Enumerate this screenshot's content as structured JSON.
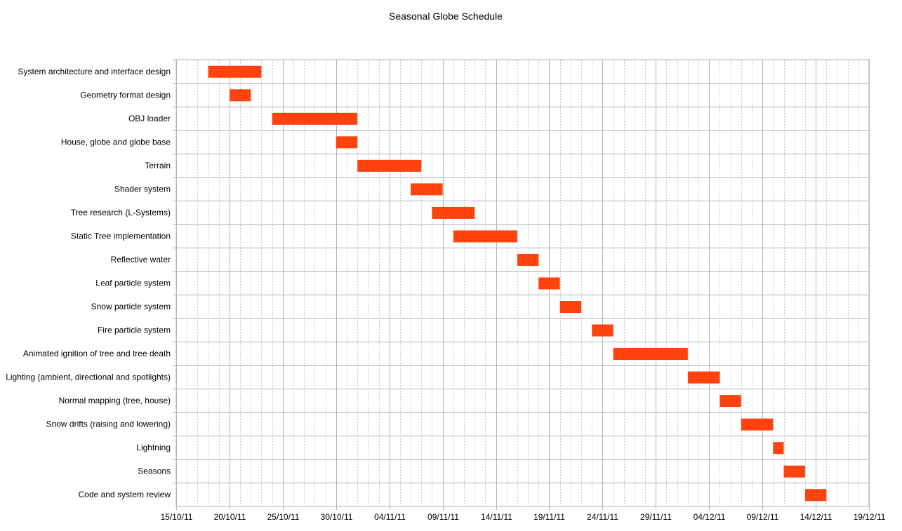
{
  "chart_data": {
    "type": "bar",
    "orientation": "horizontal",
    "title": "Seasonal Globe Schedule",
    "xlabel": "",
    "ylabel": "",
    "xlim": [
      "2011-10-15",
      "2011-12-19"
    ],
    "x_ticks": [
      "15/10/11",
      "20/10/11",
      "25/10/11",
      "30/10/11",
      "04/11/11",
      "09/11/11",
      "14/11/11",
      "19/11/11",
      "24/11/11",
      "29/11/11",
      "04/12/11",
      "09/12/11",
      "14/12/11",
      "19/12/11"
    ],
    "x_tick_dates": [
      "2011-10-15",
      "2011-10-20",
      "2011-10-25",
      "2011-10-30",
      "2011-11-04",
      "2011-11-09",
      "2011-11-14",
      "2011-11-19",
      "2011-11-24",
      "2011-11-29",
      "2011-12-04",
      "2011-12-09",
      "2011-12-14",
      "2011-12-19"
    ],
    "grid": true,
    "bar_color": "#ff420e",
    "tasks": [
      {
        "name": "System architecture and interface design",
        "start": "2011-10-18",
        "end": "2011-10-23"
      },
      {
        "name": "Geometry format design",
        "start": "2011-10-20",
        "end": "2011-10-22"
      },
      {
        "name": "OBJ loader",
        "start": "2011-10-24",
        "end": "2011-11-01"
      },
      {
        "name": "House, globe and globe base",
        "start": "2011-10-30",
        "end": "2011-11-01"
      },
      {
        "name": "Terrain",
        "start": "2011-11-01",
        "end": "2011-11-07"
      },
      {
        "name": "Shader system",
        "start": "2011-11-06",
        "end": "2011-11-09"
      },
      {
        "name": "Tree research (L-Systems)",
        "start": "2011-11-08",
        "end": "2011-11-12"
      },
      {
        "name": "Static Tree implementation",
        "start": "2011-11-10",
        "end": "2011-11-16"
      },
      {
        "name": "Reflective water",
        "start": "2011-11-16",
        "end": "2011-11-18"
      },
      {
        "name": "Leaf particle system",
        "start": "2011-11-18",
        "end": "2011-11-20"
      },
      {
        "name": "Snow particle system",
        "start": "2011-11-20",
        "end": "2011-11-22"
      },
      {
        "name": "Fire particle system",
        "start": "2011-11-23",
        "end": "2011-11-25"
      },
      {
        "name": "Animated ignition of tree and tree death",
        "start": "2011-11-25",
        "end": "2011-12-02"
      },
      {
        "name": "Lighting (ambient, directional and spotlights)",
        "start": "2011-12-02",
        "end": "2011-12-05"
      },
      {
        "name": "Normal mapping (tree, house)",
        "start": "2011-12-05",
        "end": "2011-12-07"
      },
      {
        "name": "Snow drifts (raising and lowering)",
        "start": "2011-12-07",
        "end": "2011-12-10"
      },
      {
        "name": "Lightning",
        "start": "2011-12-10",
        "end": "2011-12-11"
      },
      {
        "name": "Seasons",
        "start": "2011-12-11",
        "end": "2011-12-13"
      },
      {
        "name": "Code and system review",
        "start": "2011-12-13",
        "end": "2011-12-15"
      }
    ]
  }
}
